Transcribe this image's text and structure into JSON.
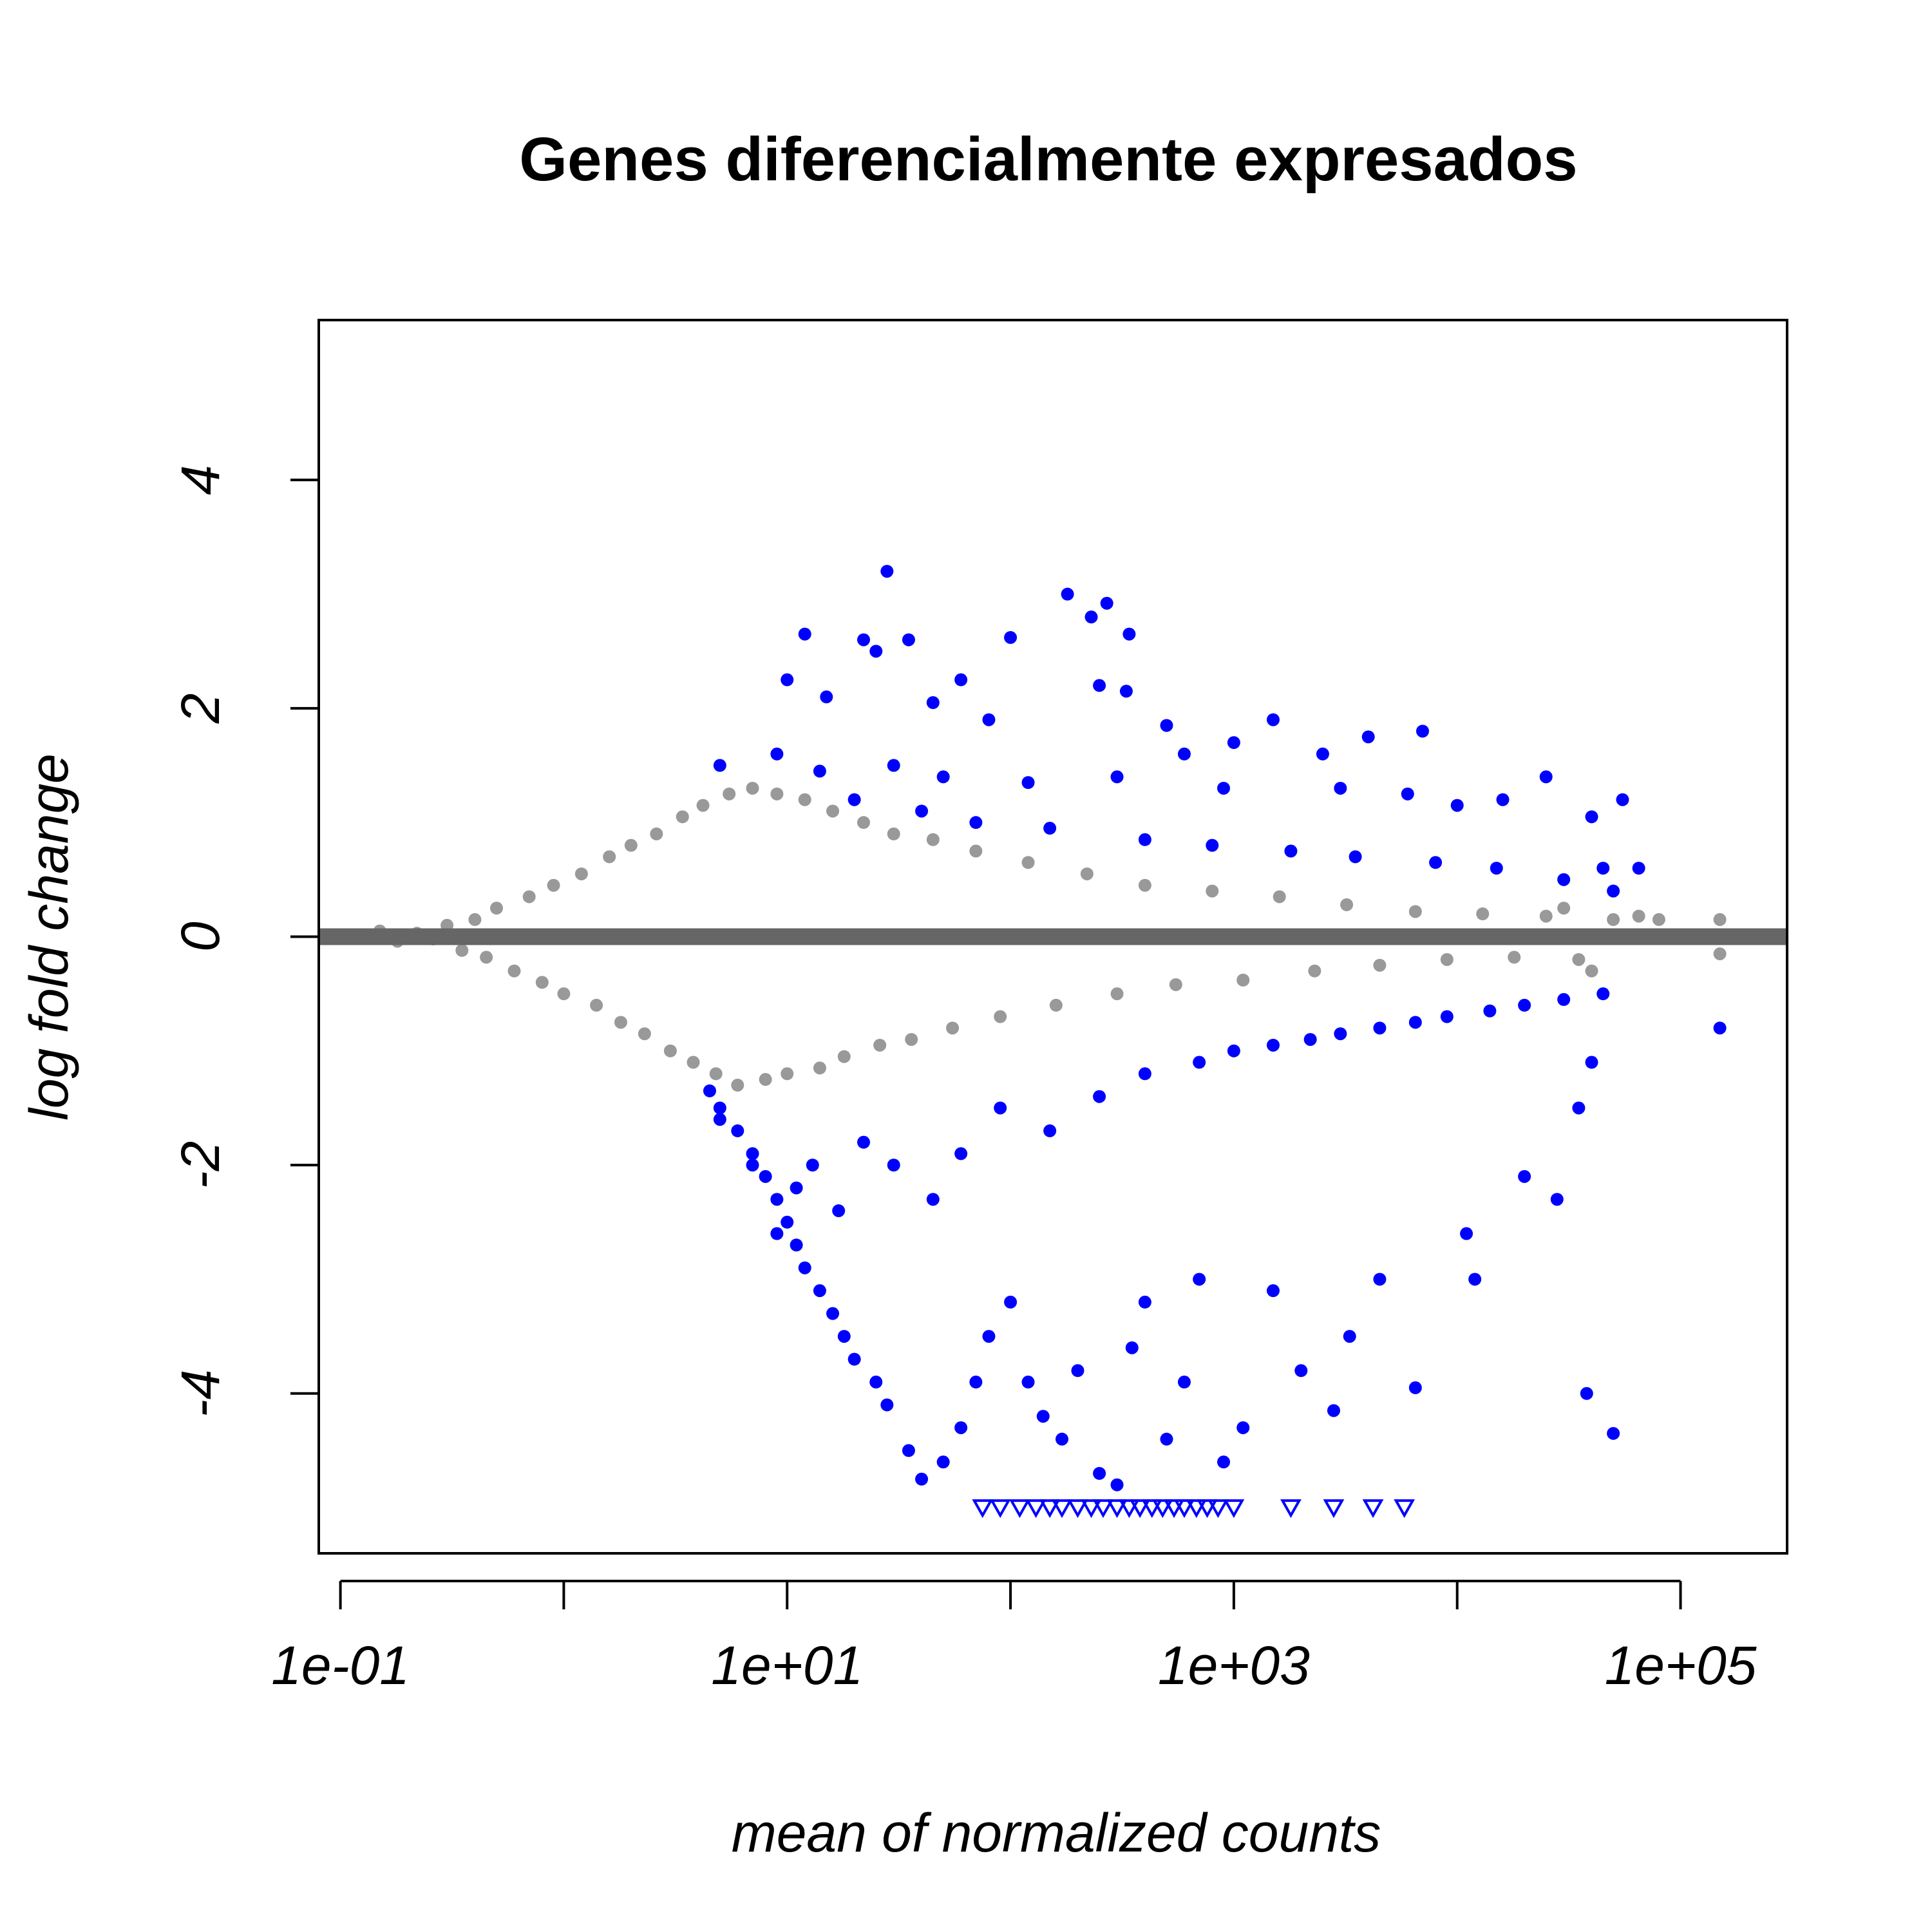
{
  "chart_data": {
    "type": "scatter",
    "title": "Genes diferencialmente expresados",
    "xlabel": "mean of normalized counts",
    "ylabel": "log fold change",
    "x_scale": "log10",
    "xlim": [
      0.08,
      300000
    ],
    "ylim": [
      -5.4,
      5.4
    ],
    "x_ticks": [
      0.1,
      1,
      10,
      100,
      1000,
      10000,
      100000
    ],
    "x_tick_labels": [
      "1e-01",
      "1e+01",
      "1e+03",
      "1e+05"
    ],
    "x_tick_labels_at": [
      0.1,
      10,
      1000,
      100000
    ],
    "y_ticks": [
      -4,
      -2,
      0,
      2,
      4
    ],
    "y_tick_labels": [
      "-4",
      "-2",
      "0",
      "2",
      "4"
    ],
    "zero_line": {
      "y": 0,
      "color": "#666666"
    },
    "colors": {
      "not_significant": "#999999",
      "significant": "#0000FF"
    },
    "legend": "none",
    "grid": false,
    "series": [
      {
        "group": "not_significant",
        "marker": "circle",
        "points": [
          [
            0.15,
            0.05
          ],
          [
            0.18,
            -0.04
          ],
          [
            0.22,
            0.03
          ],
          [
            0.26,
            -0.02
          ],
          [
            0.3,
            0.1
          ],
          [
            0.35,
            -0.12
          ],
          [
            0.4,
            0.15
          ],
          [
            0.45,
            -0.18
          ],
          [
            0.5,
            0.25
          ],
          [
            0.6,
            -0.3
          ],
          [
            0.7,
            0.35
          ],
          [
            0.8,
            -0.4
          ],
          [
            0.9,
            0.45
          ],
          [
            1.0,
            -0.5
          ],
          [
            1.2,
            0.55
          ],
          [
            1.4,
            -0.6
          ],
          [
            1.6,
            0.7
          ],
          [
            1.8,
            -0.75
          ],
          [
            2.0,
            0.8
          ],
          [
            2.3,
            -0.85
          ],
          [
            2.6,
            0.9
          ],
          [
            3.0,
            -1.0
          ],
          [
            3.4,
            1.05
          ],
          [
            3.8,
            -1.1
          ],
          [
            4.2,
            1.15
          ],
          [
            4.8,
            -1.2
          ],
          [
            5.5,
            1.25
          ],
          [
            6.0,
            -1.3
          ],
          [
            7.0,
            1.3
          ],
          [
            8.0,
            -1.25
          ],
          [
            9.0,
            1.25
          ],
          [
            10.0,
            -1.2
          ],
          [
            12,
            1.2
          ],
          [
            14,
            -1.15
          ],
          [
            16,
            1.1
          ],
          [
            18,
            -1.05
          ],
          [
            22,
            1.0
          ],
          [
            26,
            -0.95
          ],
          [
            30,
            0.9
          ],
          [
            36,
            -0.9
          ],
          [
            45,
            0.85
          ],
          [
            55,
            -0.8
          ],
          [
            70,
            0.75
          ],
          [
            90,
            -0.7
          ],
          [
            120,
            0.65
          ],
          [
            160,
            -0.6
          ],
          [
            220,
            0.55
          ],
          [
            300,
            -0.5
          ],
          [
            400,
            0.45
          ],
          [
            550,
            -0.42
          ],
          [
            800,
            0.4
          ],
          [
            1100,
            -0.38
          ],
          [
            1600,
            0.35
          ],
          [
            2300,
            -0.3
          ],
          [
            3200,
            0.28
          ],
          [
            4500,
            -0.25
          ],
          [
            6500,
            0.22
          ],
          [
            9000,
            -0.2
          ],
          [
            13000,
            0.2
          ],
          [
            18000,
            -0.18
          ],
          [
            25000,
            0.18
          ],
          [
            35000,
            -0.2
          ],
          [
            50000,
            0.15
          ],
          [
            65000,
            0.18
          ],
          [
            80000,
            0.15
          ],
          [
            150000,
            0.15
          ],
          [
            150000,
            -0.15
          ],
          [
            40000,
            -0.3
          ],
          [
            30000,
            0.25
          ]
        ]
      },
      {
        "group": "significant",
        "marker": "circle",
        "points": [
          [
            28,
            3.2
          ],
          [
            180,
            3.0
          ],
          [
            270,
            2.92
          ],
          [
            230,
            2.8
          ],
          [
            100,
            2.62
          ],
          [
            340,
            2.65
          ],
          [
            12,
            2.65
          ],
          [
            35,
            2.6
          ],
          [
            22,
            2.6
          ],
          [
            25,
            2.5
          ],
          [
            10,
            2.25
          ],
          [
            60,
            2.25
          ],
          [
            250,
            2.2
          ],
          [
            330,
            2.15
          ],
          [
            15,
            2.1
          ],
          [
            45,
            2.05
          ],
          [
            80,
            1.9
          ],
          [
            500,
            1.85
          ],
          [
            1500,
            1.9
          ],
          [
            1000,
            1.7
          ],
          [
            4000,
            1.75
          ],
          [
            7000,
            1.8
          ],
          [
            600,
            1.6
          ],
          [
            2500,
            1.6
          ],
          [
            5,
            1.5
          ],
          [
            9,
            1.6
          ],
          [
            14,
            1.45
          ],
          [
            30,
            1.5
          ],
          [
            50,
            1.4
          ],
          [
            120,
            1.35
          ],
          [
            300,
            1.4
          ],
          [
            900,
            1.3
          ],
          [
            3000,
            1.3
          ],
          [
            6000,
            1.25
          ],
          [
            10000,
            1.15
          ],
          [
            16000,
            1.2
          ],
          [
            25000,
            1.4
          ],
          [
            40000,
            1.05
          ],
          [
            55000,
            1.2
          ],
          [
            45000,
            0.6
          ],
          [
            20,
            1.2
          ],
          [
            40,
            1.1
          ],
          [
            70,
            1.0
          ],
          [
            150,
            0.95
          ],
          [
            400,
            0.85
          ],
          [
            800,
            0.8
          ],
          [
            1800,
            0.75
          ],
          [
            3500,
            0.7
          ],
          [
            8000,
            0.65
          ],
          [
            15000,
            0.6
          ],
          [
            30000,
            0.5
          ],
          [
            50000,
            0.4
          ],
          [
            65000,
            0.6
          ],
          [
            4.5,
            -1.35
          ],
          [
            5,
            -1.5
          ],
          [
            6,
            -1.7
          ],
          [
            7,
            -1.9
          ],
          [
            8,
            -2.1
          ],
          [
            9,
            -2.3
          ],
          [
            10,
            -2.5
          ],
          [
            11,
            -2.7
          ],
          [
            12,
            -2.9
          ],
          [
            14,
            -3.1
          ],
          [
            16,
            -3.3
          ],
          [
            18,
            -3.5
          ],
          [
            20,
            -3.7
          ],
          [
            25,
            -3.9
          ],
          [
            28,
            -4.1
          ],
          [
            35,
            -4.5
          ],
          [
            40,
            -4.75
          ],
          [
            50,
            -4.6
          ],
          [
            60,
            -4.3
          ],
          [
            70,
            -3.9
          ],
          [
            80,
            -3.5
          ],
          [
            100,
            -3.2
          ],
          [
            120,
            -3.9
          ],
          [
            140,
            -4.2
          ],
          [
            170,
            -4.4
          ],
          [
            200,
            -3.8
          ],
          [
            250,
            -4.7
          ],
          [
            300,
            -4.8
          ],
          [
            350,
            -3.6
          ],
          [
            400,
            -3.2
          ],
          [
            500,
            -4.4
          ],
          [
            600,
            -3.9
          ],
          [
            700,
            -3.0
          ],
          [
            900,
            -4.6
          ],
          [
            1100,
            -4.3
          ],
          [
            1500,
            -3.1
          ],
          [
            2000,
            -3.8
          ],
          [
            2800,
            -4.15
          ],
          [
            3300,
            -3.5
          ],
          [
            4500,
            -3.0
          ],
          [
            6500,
            -3.95
          ],
          [
            11000,
            -2.6
          ],
          [
            12000,
            -3.0
          ],
          [
            20000,
            -2.1
          ],
          [
            28000,
            -2.3
          ],
          [
            35000,
            -1.5
          ],
          [
            40000,
            -1.1
          ],
          [
            38000,
            -4.0
          ],
          [
            50000,
            -4.35
          ],
          [
            150000,
            -0.8
          ],
          [
            5,
            -1.6
          ],
          [
            7,
            -2.0
          ],
          [
            9,
            -2.6
          ],
          [
            11,
            -2.2
          ],
          [
            13,
            -2.0
          ],
          [
            17,
            -2.4
          ],
          [
            22,
            -1.8
          ],
          [
            30,
            -2.0
          ],
          [
            45,
            -2.3
          ],
          [
            60,
            -1.9
          ],
          [
            90,
            -1.5
          ],
          [
            150,
            -1.7
          ],
          [
            250,
            -1.4
          ],
          [
            400,
            -1.2
          ],
          [
            700,
            -1.1
          ],
          [
            1000,
            -1.0
          ],
          [
            1500,
            -0.95
          ],
          [
            2200,
            -0.9
          ],
          [
            3000,
            -0.85
          ],
          [
            4500,
            -0.8
          ],
          [
            6500,
            -0.75
          ],
          [
            9000,
            -0.7
          ],
          [
            14000,
            -0.65
          ],
          [
            20000,
            -0.6
          ],
          [
            30000,
            -0.55
          ],
          [
            45000,
            -0.5
          ]
        ]
      },
      {
        "group": "significant",
        "marker": "triangle-down",
        "note_visible": "off-scale points at lower bound",
        "points": [
          [
            75,
            -5
          ],
          [
            90,
            -5
          ],
          [
            110,
            -5
          ],
          [
            130,
            -5
          ],
          [
            150,
            -5
          ],
          [
            170,
            -5
          ],
          [
            200,
            -5
          ],
          [
            230,
            -5
          ],
          [
            260,
            -5
          ],
          [
            300,
            -5
          ],
          [
            340,
            -5
          ],
          [
            380,
            -5
          ],
          [
            430,
            -5
          ],
          [
            480,
            -5
          ],
          [
            540,
            -5
          ],
          [
            600,
            -5
          ],
          [
            680,
            -5
          ],
          [
            760,
            -5
          ],
          [
            850,
            -5
          ],
          [
            1000,
            -5
          ],
          [
            1800,
            -5
          ],
          [
            2800,
            -5
          ],
          [
            4200,
            -5
          ],
          [
            5800,
            -5
          ]
        ]
      }
    ]
  }
}
